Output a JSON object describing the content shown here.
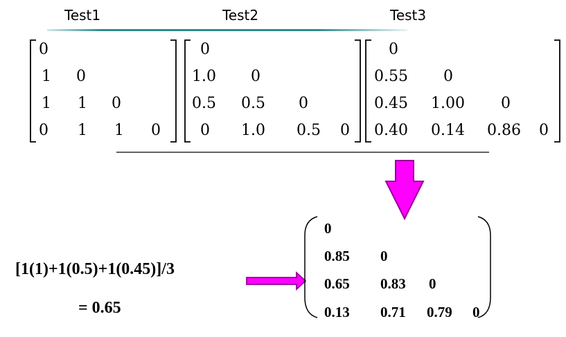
{
  "tests": [
    "Test1",
    "Test2",
    "Test3"
  ],
  "matrix1": [
    [
      "0"
    ],
    [
      "1",
      "0"
    ],
    [
      "1",
      "1",
      "0"
    ],
    [
      "0",
      "1",
      "1",
      "0"
    ]
  ],
  "matrix2": [
    [
      "0"
    ],
    [
      "1.0",
      "0"
    ],
    [
      "0.5",
      "0.5",
      "0"
    ],
    [
      "0",
      "1.0",
      "0.5",
      "0"
    ]
  ],
  "matrix3": [
    [
      "0"
    ],
    [
      "0.55",
      "0"
    ],
    [
      "0.45",
      "1.00",
      "0"
    ],
    [
      "0.40",
      "0.14",
      "0.86",
      "0"
    ]
  ],
  "result": [
    [
      "0"
    ],
    [
      "0.85",
      "0"
    ],
    [
      "0.65",
      "0.83",
      "0"
    ],
    [
      "0.13",
      "0.71",
      "0.79",
      "0"
    ]
  ],
  "formula": "[1(1)+1(0.5)+1(0.45)]/3",
  "formula_result": "=  0.65",
  "colors": {
    "teal_line": "#2e8b8b",
    "arrow_fill": "#ff00ff",
    "arrow_stroke": "#9a009a"
  }
}
